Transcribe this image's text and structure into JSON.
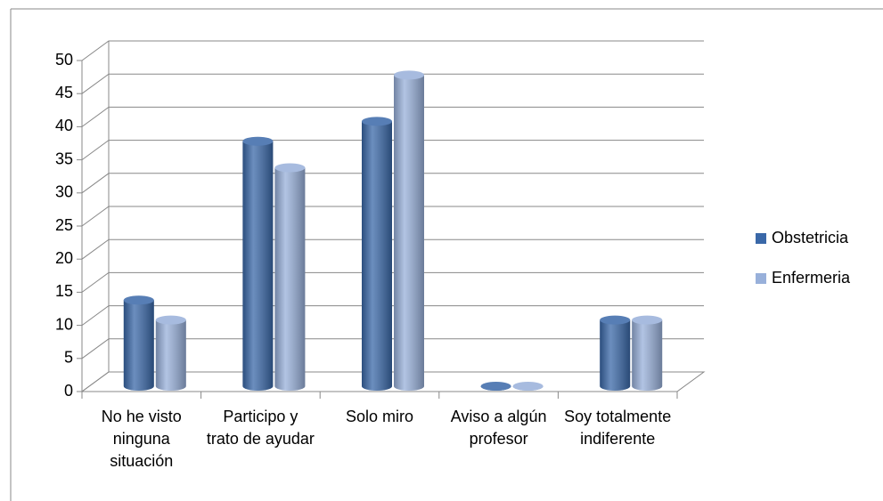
{
  "chart_data": {
    "type": "bar3d",
    "categories": [
      "No he visto ninguna situación",
      "Participo y trato de ayudar",
      "Solo miro",
      "Aviso a algún profesor",
      "Soy totalmente indiferente"
    ],
    "series": [
      {
        "name": "Obstetricia",
        "color": "#3a68a8",
        "values": [
          13,
          37,
          40,
          0,
          10
        ]
      },
      {
        "name": "Enfermeria",
        "color": "#98b0da",
        "values": [
          10,
          33,
          47,
          0,
          10
        ]
      }
    ],
    "ylim": [
      0,
      50
    ],
    "yticks": [
      0,
      5,
      10,
      15,
      20,
      25,
      30,
      35,
      40,
      45,
      50
    ],
    "grid": true,
    "legend": "right"
  }
}
